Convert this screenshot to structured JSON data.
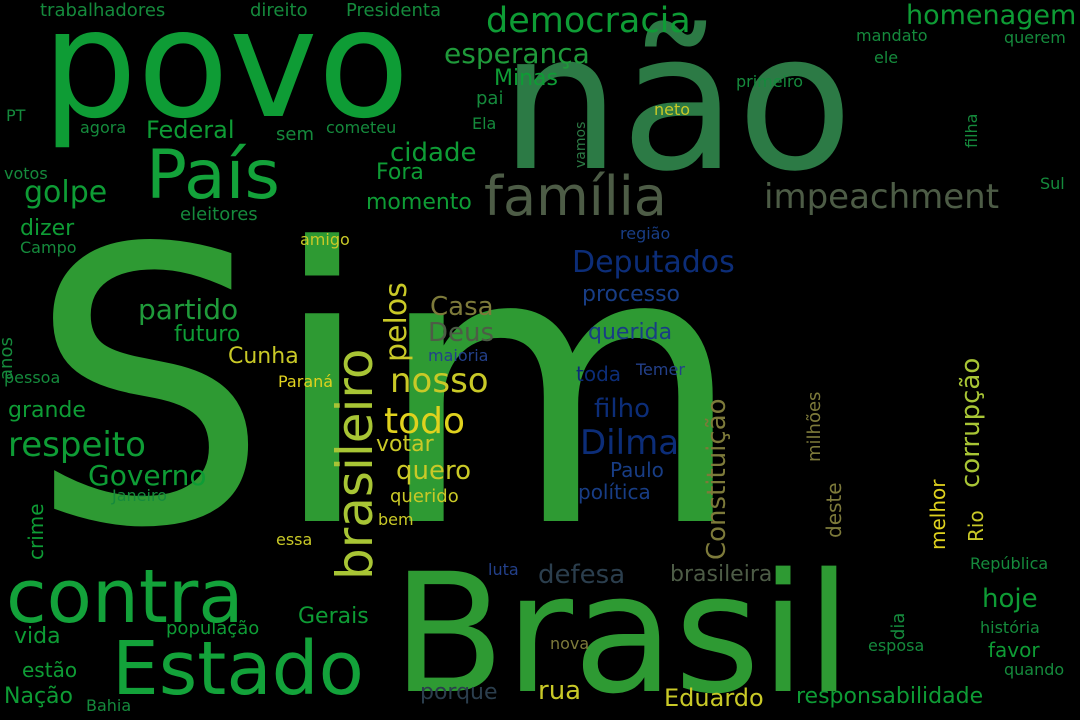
{
  "words": {
    "sim": "Sim",
    "nao": "não",
    "povo": "povo",
    "brasil": "Brasil",
    "contra": "contra",
    "estado": "Estado",
    "pais": "País",
    "brasileiro": "brasileiro",
    "familia": "família",
    "democracia": "democracia",
    "impeachment": "impeachment",
    "homenagem": "homenagem",
    "esperanca": "esperança",
    "respeito": "respeito",
    "nosso": "nosso",
    "todo": "todo",
    "dilma": "Dilma",
    "deputados": "Deputados",
    "governo": "Governo",
    "golpe": "golpe",
    "partido": "partido",
    "cidade": "cidade",
    "federal": "Federal",
    "casa": "Casa",
    "deus": "Deus",
    "pelos": "pelos",
    "constituicao": "Constituição",
    "corrupcao": "corrupção",
    "processo": "processo",
    "querida": "querida",
    "filho": "filho",
    "defesa": "defesa",
    "brasileira": "brasileira",
    "hoje": "hoje",
    "rua": "rua",
    "eduardo": "Eduardo",
    "responsabilidade": "responsabilidade",
    "quero": "quero",
    "votar": "votar",
    "grande": "grande",
    "futuro": "futuro",
    "cunha": "Cunha",
    "momento": "momento",
    "fora": "Fora",
    "minas": "Minas",
    "gerais": "Gerais",
    "vida": "vida",
    "nacao": "Nação",
    "estao": "estão",
    "porque": "porque",
    "populacao": "população",
    "dizer": "dizer",
    "crime": "crime",
    "trabalhadores": "trabalhadores",
    "direito": "direito",
    "presidenta": "Presidenta",
    "mandato": "mandato",
    "querem": "querem",
    "ele": "ele",
    "primeiro": "primeiro",
    "neto": "neto",
    "filha": "filha",
    "pai": "pai",
    "ela": "Ela",
    "cometeu": "cometeu",
    "sem": "sem",
    "agora": "agora",
    "pt": "PT",
    "votos": "votos",
    "eleitores": "eleitores",
    "campo": "Campo",
    "amigo": "amigo",
    "regiao": "região",
    "vamos": "vamos",
    "sul": "Sul",
    "anos": "anos",
    "pessoa": "pessoa",
    "parana": "Paraná",
    "maioria": "maioria",
    "temer": "Temer",
    "toda": "toda",
    "paulo": "Paulo",
    "politica": "política",
    "janeiro": "Janeiro",
    "querido": "querido",
    "bem": "bem",
    "essa": "essa",
    "milhoes": "milhões",
    "deste": "deste",
    "melhor": "melhor",
    "rio": "Rio",
    "luta": "luta",
    "nova": "nova",
    "dia": "dia",
    "esposa": "esposa",
    "favor": "favor",
    "quando": "quando",
    "historia": "história",
    "republica": "República",
    "bahia": "Bahia"
  }
}
